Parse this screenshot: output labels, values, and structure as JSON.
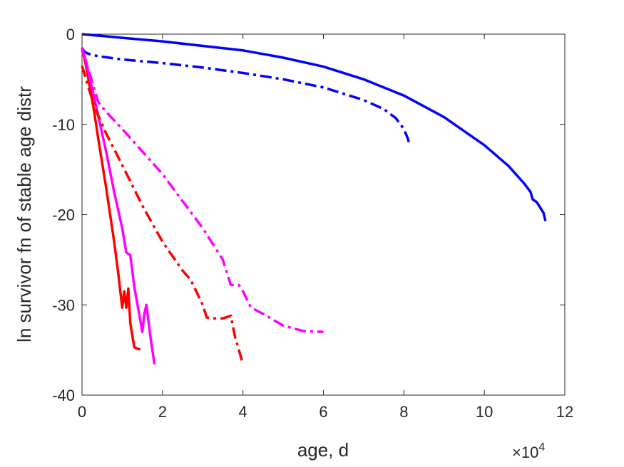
{
  "chart_data": {
    "type": "line",
    "title": "",
    "xlabel": "age, d",
    "ylabel": "ln survivor fn of stable age distr",
    "x_exponent_label": "×10",
    "x_exponent_power": "4",
    "xlim": [
      0,
      120000
    ],
    "ylim": [
      -40,
      0
    ],
    "x_ticks": [
      0,
      20000,
      40000,
      60000,
      80000,
      100000,
      120000
    ],
    "x_tick_labels": [
      "0",
      "2",
      "4",
      "6",
      "8",
      "10",
      "12"
    ],
    "y_ticks": [
      0,
      -10,
      -20,
      -30,
      -40
    ],
    "y_tick_labels": [
      "0",
      "-10",
      "-20",
      "-30",
      "-40"
    ],
    "grid": false,
    "series": [
      {
        "color": "#0000ff",
        "dash": "solid",
        "x": [
          0,
          5000,
          10000,
          20000,
          30000,
          40000,
          50000,
          60000,
          70000,
          80000,
          90000,
          100000,
          106000,
          110000,
          111500,
          112000,
          113000,
          114000,
          114700,
          115200
        ],
        "y": [
          0,
          -0.2,
          -0.4,
          -0.8,
          -1.3,
          -1.8,
          -2.6,
          -3.6,
          -5.0,
          -6.8,
          -9.2,
          -12.3,
          -14.6,
          -16.6,
          -17.5,
          -18.3,
          -18.6,
          -19.3,
          -19.8,
          -20.7
        ]
      },
      {
        "color": "#0000ff",
        "dash": "dashdot",
        "x": [
          0,
          500,
          1200,
          2500,
          5000,
          10000,
          20000,
          30000,
          40000,
          50000,
          60000,
          70000,
          75000,
          78000,
          80000,
          81000,
          81500
        ],
        "y": [
          -1.5,
          -1.9,
          -2.1,
          -2.3,
          -2.5,
          -2.8,
          -3.2,
          -3.7,
          -4.3,
          -5.0,
          -5.9,
          -7.3,
          -8.3,
          -9.3,
          -10.5,
          -11.6,
          -12.4
        ]
      },
      {
        "color": "#ff0000",
        "dash": "solid",
        "x": [
          0,
          1000,
          2000,
          3000,
          4000,
          6000,
          8000,
          9000,
          10000,
          10500,
          11000,
          11500,
          12000,
          13000,
          14000,
          14500
        ],
        "y": [
          -1.5,
          -3.5,
          -6.0,
          -8.5,
          -11.5,
          -17.0,
          -23.0,
          -26.5,
          -30.3,
          -28.5,
          -30.3,
          -28.2,
          -32.0,
          -34.7,
          -34.9,
          -34.9
        ]
      },
      {
        "color": "#ff00ff",
        "dash": "solid",
        "x": [
          0,
          1000,
          2000,
          3000,
          4000,
          6000,
          8000,
          10000,
          11000,
          12000,
          13000,
          14000,
          15000,
          15500,
          16000,
          17000,
          18000
        ],
        "y": [
          -1.5,
          -3.0,
          -5.0,
          -7.0,
          -9.0,
          -13.0,
          -17.5,
          -21.5,
          -24.2,
          -24.5,
          -28.0,
          -30.5,
          -33.0,
          -31.0,
          -30.0,
          -33.5,
          -36.6
        ]
      },
      {
        "color": "#ff0000",
        "dash": "dashdot",
        "x": [
          0,
          2000,
          4000,
          6000,
          10000,
          15000,
          20000,
          25000,
          27000,
          30000,
          31000,
          33000,
          35000,
          37000,
          38000,
          39000,
          40000
        ],
        "y": [
          -3.5,
          -6.5,
          -9.0,
          -11.0,
          -14.5,
          -19.0,
          -23.0,
          -26.2,
          -27.2,
          -30.0,
          -31.4,
          -31.5,
          -31.5,
          -31.2,
          -33.5,
          -35.0,
          -36.6
        ]
      },
      {
        "color": "#ff00ff",
        "dash": "dashdot",
        "x": [
          0,
          2000,
          4000,
          6000,
          10000,
          15000,
          20000,
          25000,
          30000,
          35000,
          37000,
          39000,
          40000,
          42000,
          45000,
          50000,
          55000,
          60000
        ],
        "y": [
          -1.8,
          -4.5,
          -7.5,
          -8.6,
          -10.5,
          -13.0,
          -15.5,
          -18.5,
          -21.5,
          -25.0,
          -27.8,
          -27.8,
          -28.5,
          -30.3,
          -31.0,
          -32.3,
          -32.9,
          -33.0
        ]
      }
    ]
  }
}
